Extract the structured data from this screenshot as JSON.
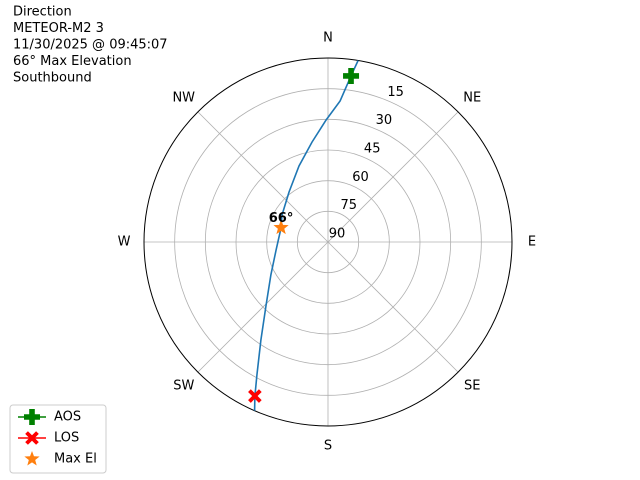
{
  "chart_data": {
    "type": "polar",
    "title_lines": [
      "Direction",
      "METEOR-M2 3",
      "11/30/2025 @ 09:45:07",
      "66° Max Elevation",
      "Southbound"
    ],
    "rlim": [
      90,
      0
    ],
    "rticks": [
      15,
      30,
      45,
      60,
      75,
      90
    ],
    "thetaticks": [
      {
        "value": 0,
        "label": "N"
      },
      {
        "value": 45,
        "label": "NE"
      },
      {
        "value": 90,
        "label": "E"
      },
      {
        "value": 135,
        "label": "SE"
      },
      {
        "value": 180,
        "label": "S"
      },
      {
        "value": 225,
        "label": "SW"
      },
      {
        "value": 270,
        "label": "W"
      },
      {
        "value": 315,
        "label": "NW"
      }
    ],
    "grid": true,
    "track": {
      "color": "#1f77b4",
      "azimuth": [
        9.4,
        7.9,
        4.9,
        359.1,
        350.9,
        339.1,
        322.0,
        300.4,
        287,
        261.3,
        240.1,
        224.5,
        214.4,
        208.1,
        205.4,
        203.5
      ],
      "elevation": [
        0,
        8,
        20.8,
        30.3,
        40.5,
        50.2,
        59.0,
        63.9,
        66,
        64.3,
        57.8,
        46.8,
        31.9,
        16.2,
        6.6,
        0
      ]
    },
    "series": [
      {
        "name": "AOS",
        "color": "#008000",
        "marker": "plus",
        "azimuth": 7.9,
        "elevation": 8
      },
      {
        "name": "LOS",
        "color": "#ff0000",
        "marker": "x",
        "azimuth": 205.4,
        "elevation": 6.6
      },
      {
        "name": "Max El",
        "color": "#ff7f0e",
        "marker": "star",
        "azimuth": 287,
        "elevation": 66
      }
    ],
    "annotation": {
      "text": "66°"
    },
    "legend": "lower left"
  }
}
